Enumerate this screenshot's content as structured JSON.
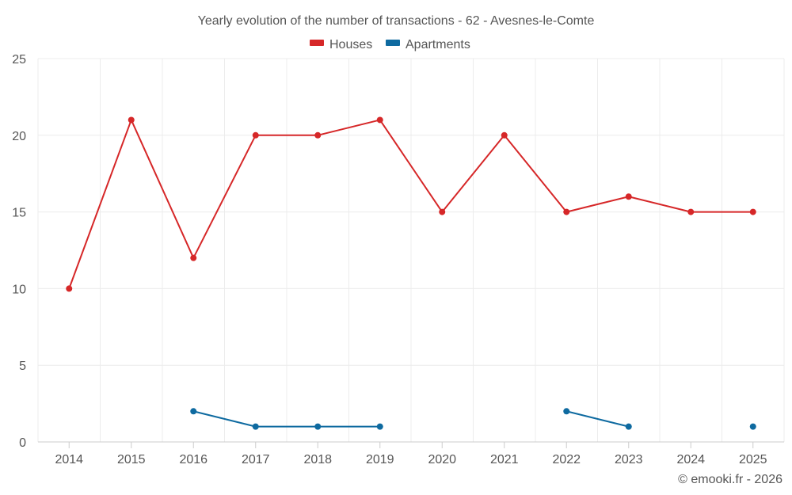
{
  "chart_data": {
    "type": "line",
    "title": "Yearly evolution of the number of transactions - 62 - Avesnes-le-Comte",
    "categories": [
      "2014",
      "2015",
      "2016",
      "2017",
      "2018",
      "2019",
      "2020",
      "2021",
      "2022",
      "2023",
      "2024",
      "2025"
    ],
    "series": [
      {
        "name": "Houses",
        "color": "#d62728",
        "values": [
          10,
          21,
          12,
          20,
          20,
          21,
          15,
          20,
          15,
          16,
          15,
          15
        ]
      },
      {
        "name": "Apartments",
        "color": "#0e6aa0",
        "values": [
          null,
          null,
          2,
          1,
          1,
          1,
          null,
          null,
          2,
          1,
          null,
          1
        ]
      }
    ],
    "y_ticks": [
      0,
      5,
      10,
      15,
      20,
      25
    ],
    "ylim": [
      0,
      25
    ],
    "grid": true,
    "legend_position": "top-center"
  },
  "credit": "© emooki.fr - 2026"
}
